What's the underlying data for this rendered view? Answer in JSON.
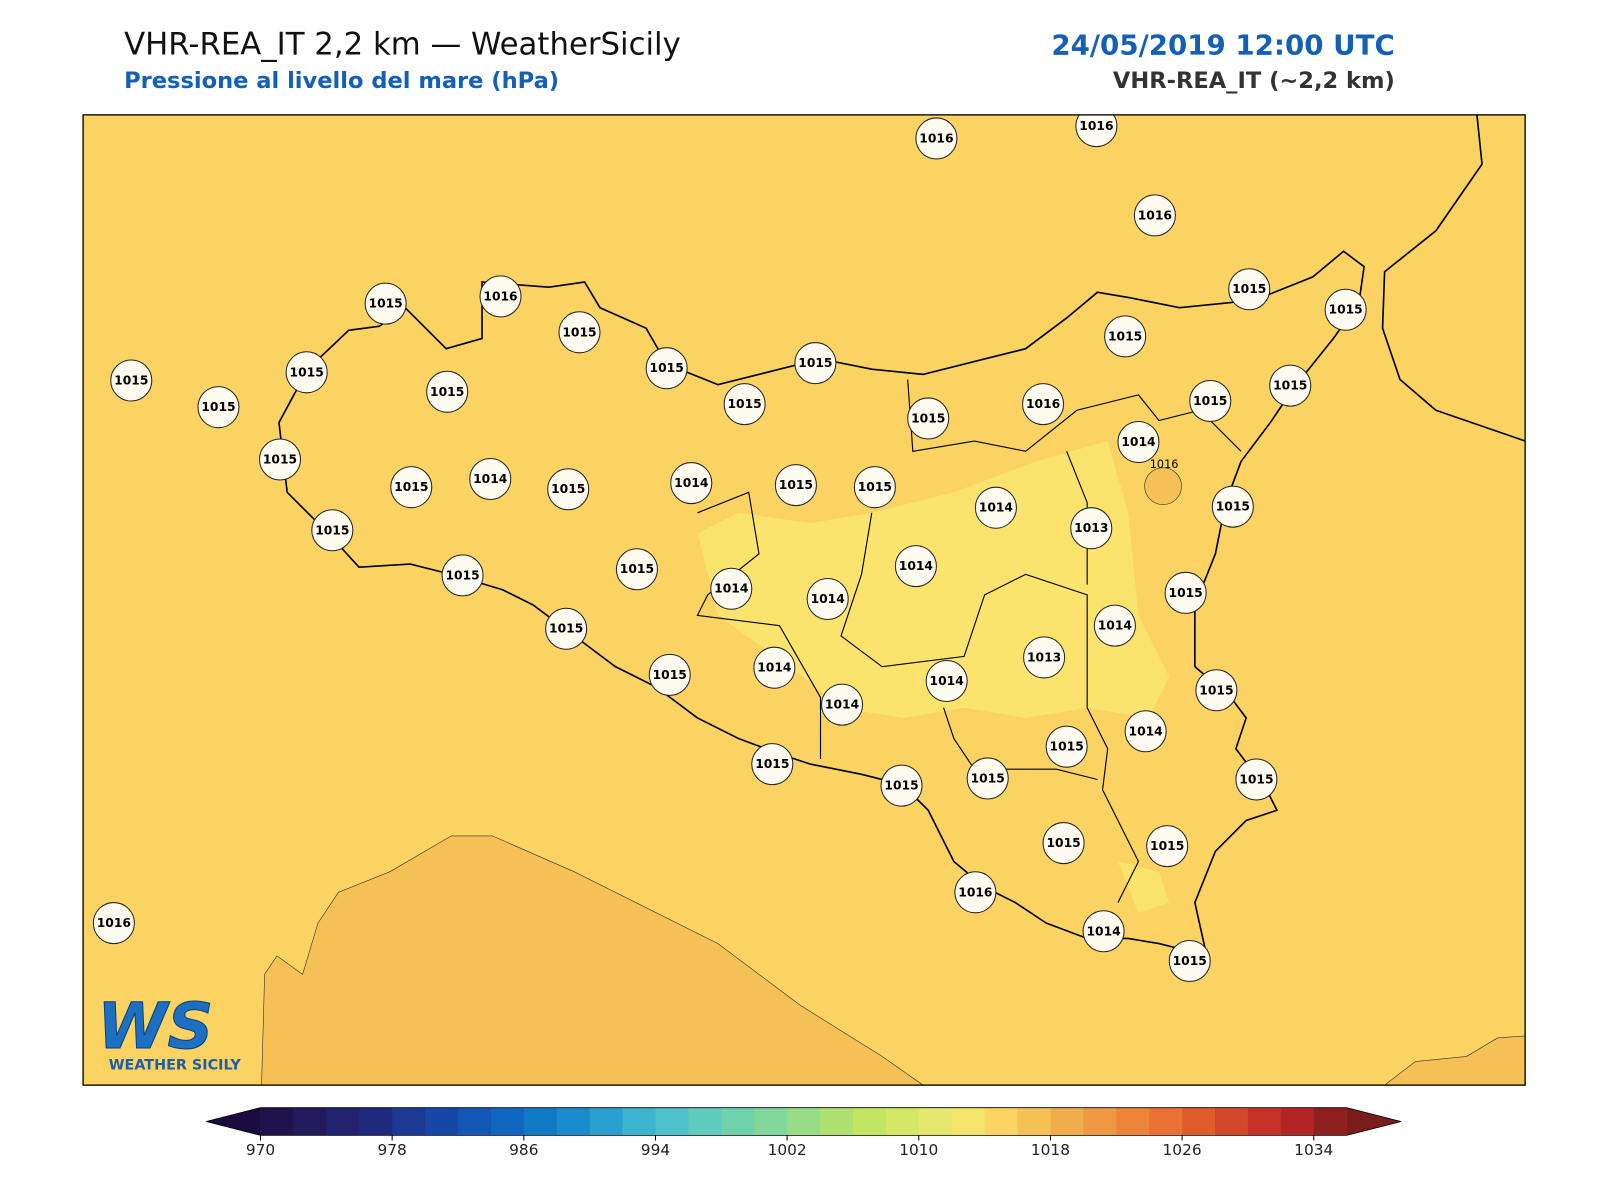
{
  "header": {
    "title": "VHR-REA_IT 2,2 km — WeatherSicily",
    "subtitle": "Pressione al livello del mare (hPa)",
    "date": "24/05/2019 12:00 UTC",
    "model": "VHR-REA_IT (~2,2 km)"
  },
  "map": {
    "background_color": "#fad362",
    "stations": [
      1016,
      1016,
      1016,
      1015,
      1016,
      1015,
      1015,
      1015,
      1015,
      1015,
      1015,
      1015,
      1015,
      1015,
      1016,
      1015,
      1015,
      1015,
      1015,
      1015,
      1014,
      1015,
      1015,
      1014,
      1015,
      1014,
      1015,
      1015,
      1014,
      1013,
      1015,
      1015,
      1015,
      1015,
      1014,
      1014,
      1014,
      1015,
      1015,
      1014,
      1013,
      1015,
      1014,
      1014,
      1014,
      1015,
      1014,
      1015,
      1015,
      1015,
      1015,
      1015,
      1015,
      1015,
      1016,
      1014,
      1015,
      1016
    ],
    "contour_labels": [
      1016
    ]
  },
  "logo": {
    "initials": "WS",
    "name": "WEATHER SICILY"
  },
  "colorbar": {
    "lim": [
      970,
      1036
    ],
    "ticks": [
      970,
      978,
      986,
      994,
      1002,
      1010,
      1018,
      1026,
      1034
    ],
    "under_color": "#1a0c3e",
    "over_color": "#7a1c1c",
    "colors": [
      "#20124d",
      "#231a5e",
      "#22226e",
      "#1f2b7f",
      "#1a3a93",
      "#1547a6",
      "#1257b3",
      "#0f67bf",
      "#0f79c6",
      "#1a8bcc",
      "#2a9fd0",
      "#3cb3cf",
      "#4dc1c9",
      "#5fcbbd",
      "#6fd2ad",
      "#82d89a",
      "#98dc86",
      "#aee170",
      "#c2e563",
      "#d4e767",
      "#e4e86e",
      "#f4e46c",
      "#fad362",
      "#f5c157",
      "#f1ac4c",
      "#ee9941",
      "#ec853a",
      "#e87133",
      "#e05c2d",
      "#d4472a",
      "#c43228",
      "#b32424",
      "#8f1f1f"
    ]
  }
}
